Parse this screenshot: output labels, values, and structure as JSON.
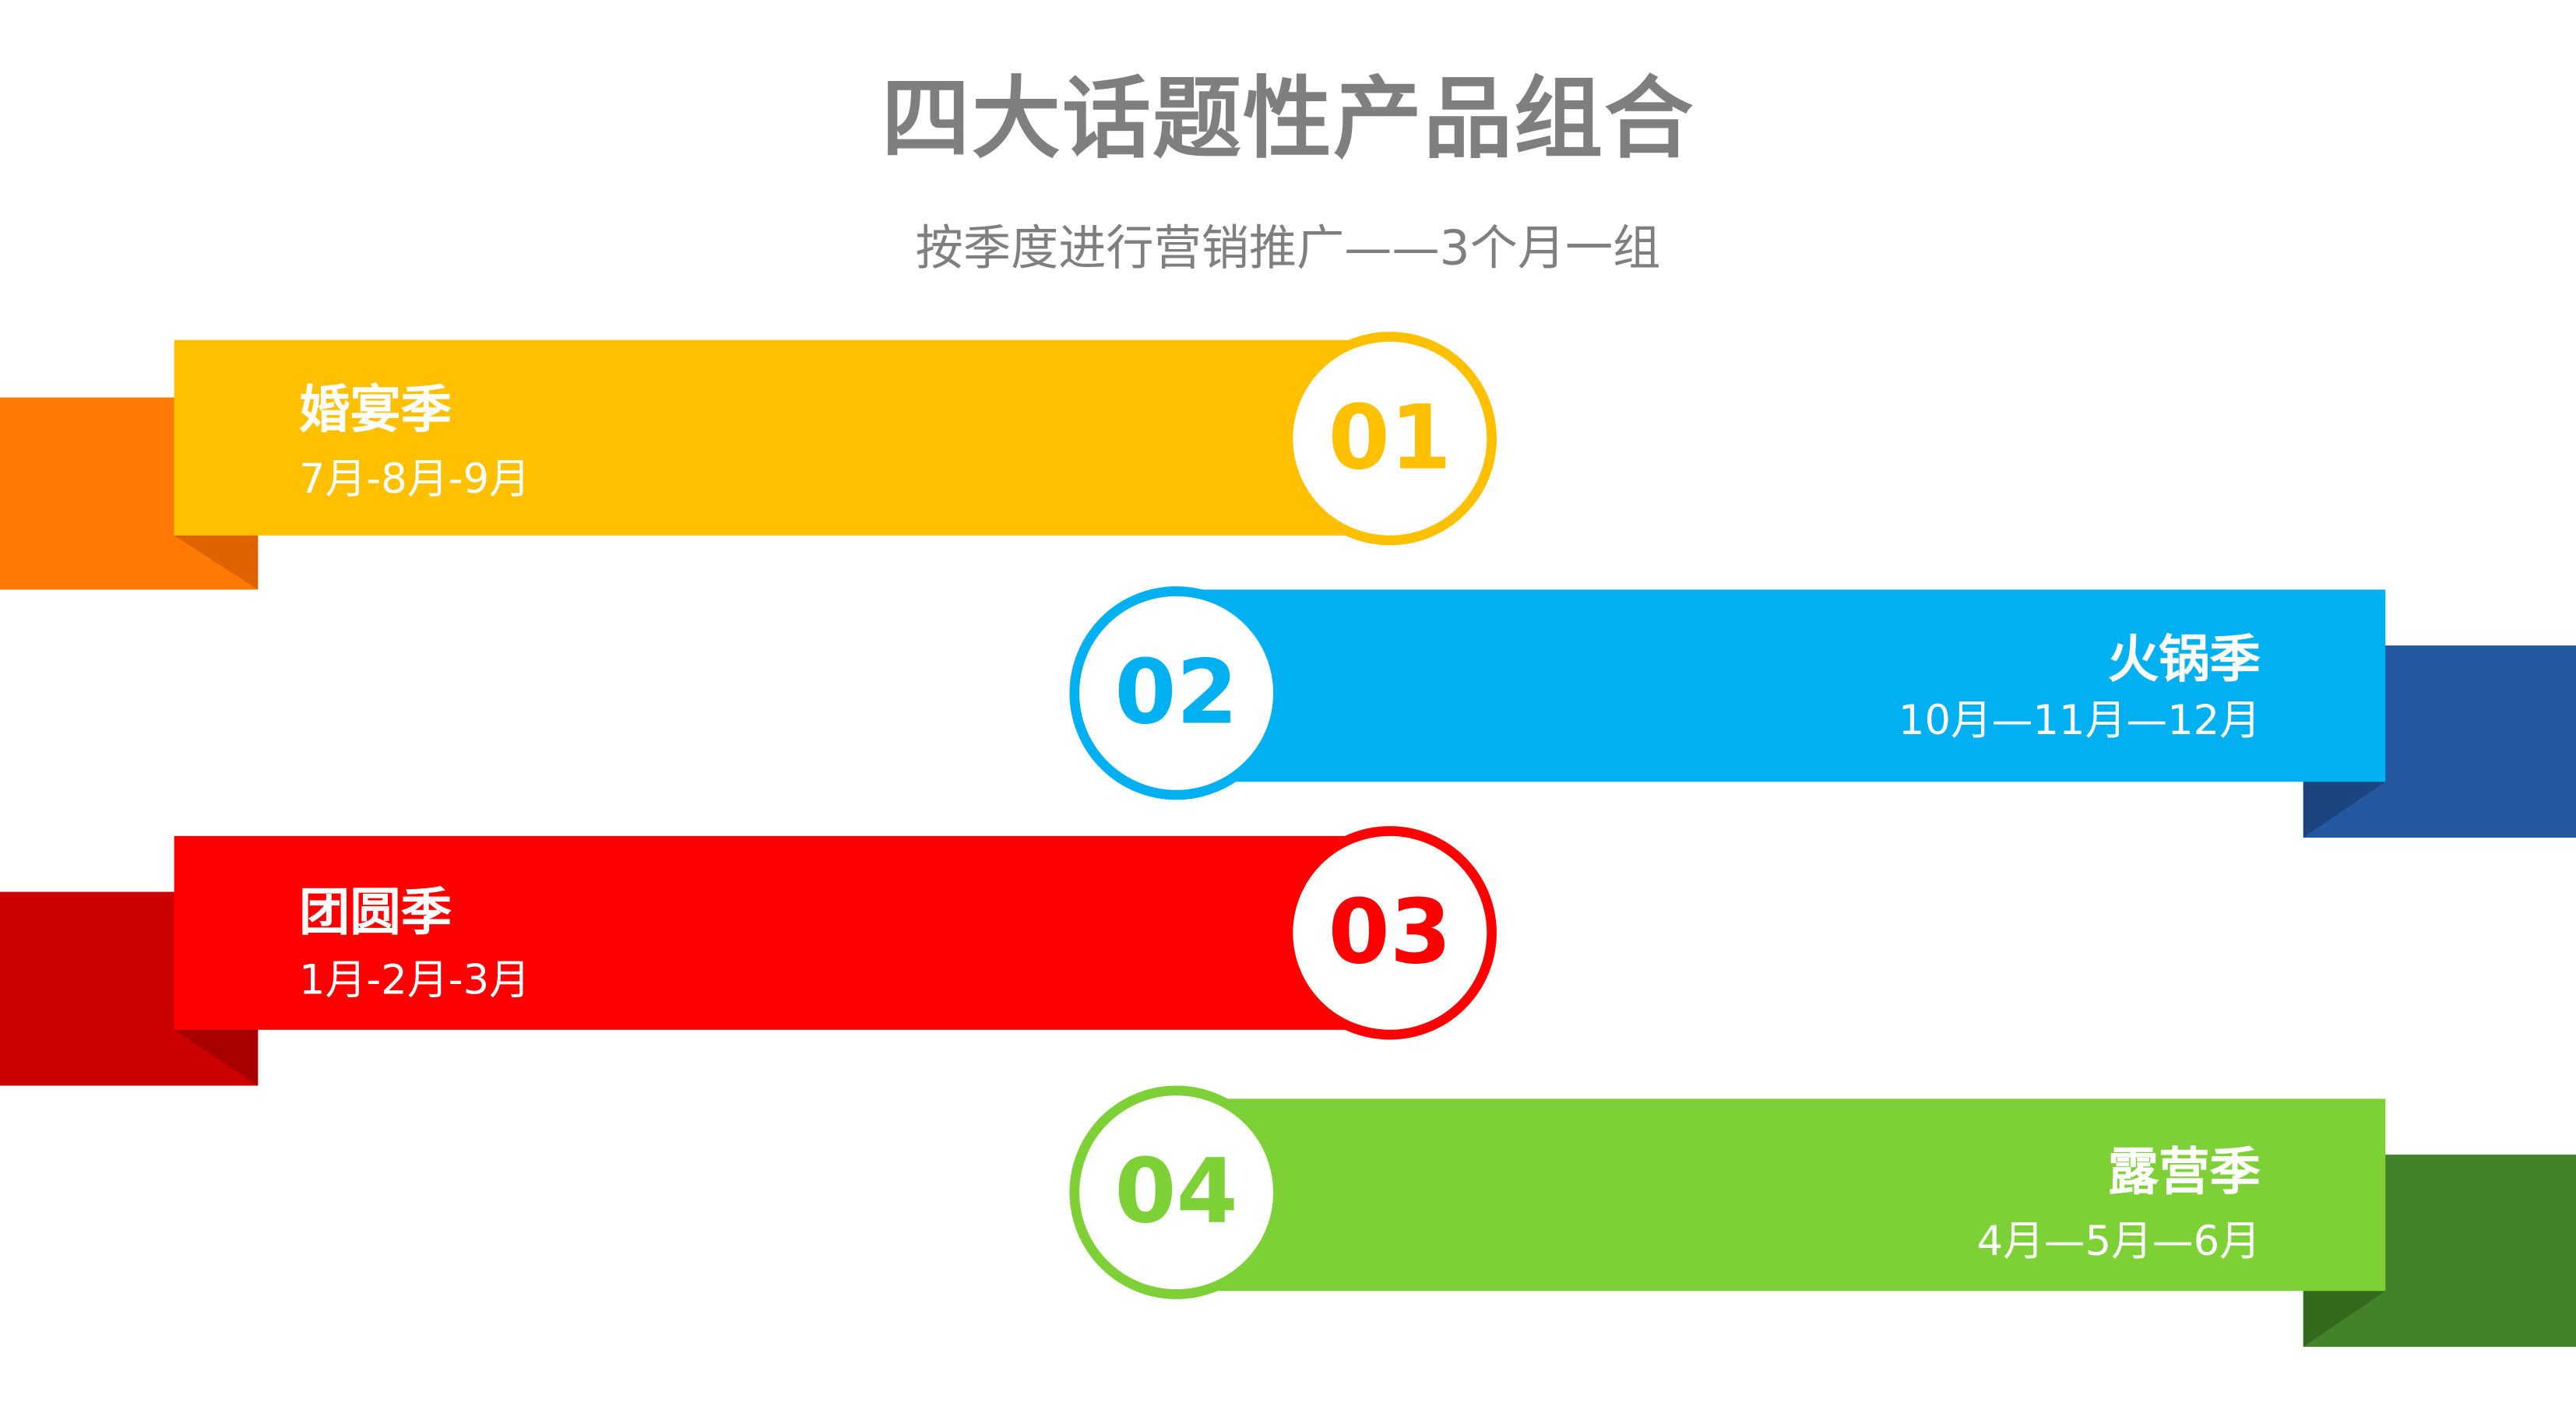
{
  "title": "四大话题性产品组合",
  "subtitle": "按季度进行营销推广——3个月一组",
  "seasons": [
    {
      "number": "01",
      "name": "婚宴季",
      "months": "7月-8月-9月",
      "color": "#FFC000",
      "back_color": "#FF7A05"
    },
    {
      "number": "02",
      "name": "火锅季",
      "months": "10月—11月—12月",
      "color": "#00B0F0",
      "back_color": "#24589E"
    },
    {
      "number": "03",
      "name": "团圆季",
      "months": "1月-2月-3月",
      "color": "#FF0000",
      "back_color": "#CC0000"
    },
    {
      "number": "04",
      "name": "露营季",
      "months": "4月—5月—6月",
      "color": "#7DD136",
      "back_color": "#428329"
    }
  ]
}
